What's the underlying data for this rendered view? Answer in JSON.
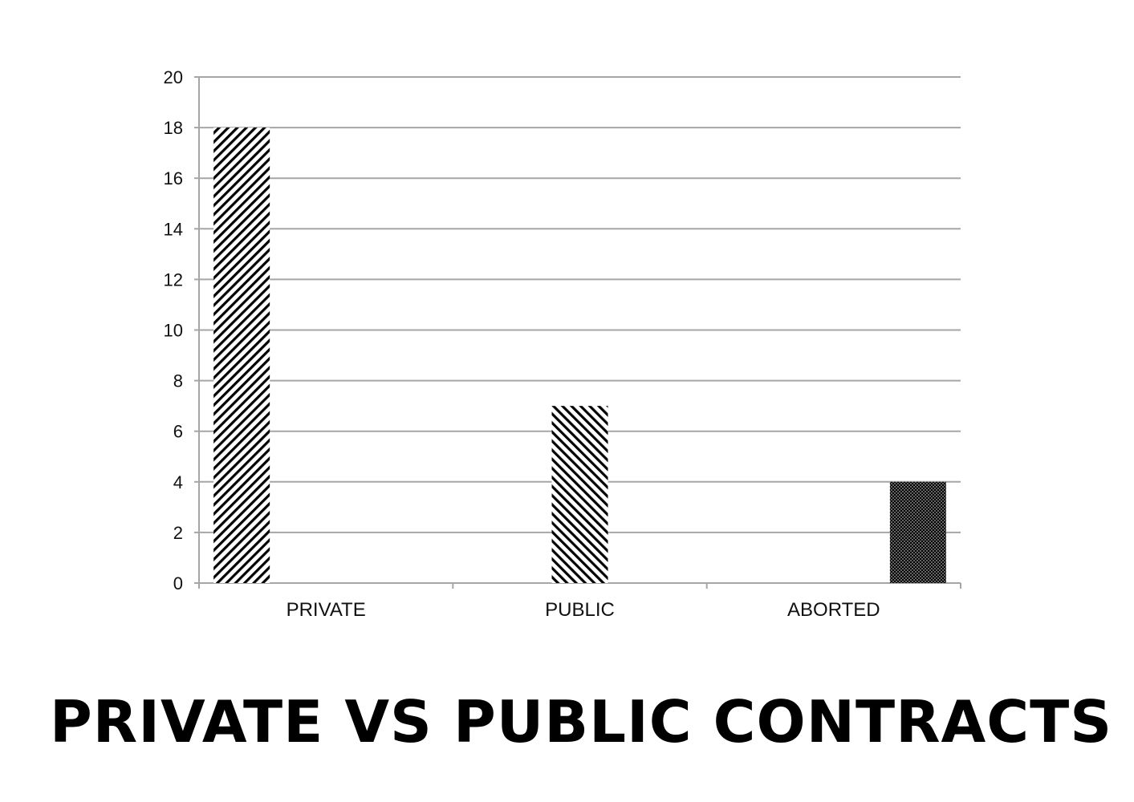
{
  "title": "PRIVATE VS PUBLIC CONTRACTS",
  "chart_data": {
    "type": "bar",
    "categories": [
      "PRIVATE",
      "PUBLIC",
      "ABORTED"
    ],
    "values": [
      18,
      7,
      4
    ],
    "title": "PRIVATE VS PUBLIC CONTRACTS",
    "xlabel": "",
    "ylabel": "",
    "ylim": [
      0,
      20
    ],
    "yticks": [
      0,
      2,
      4,
      6,
      8,
      10,
      12,
      14,
      16,
      18,
      20
    ],
    "grid": true,
    "legend": "none",
    "bar_fills": [
      "diagonal-hatch-right",
      "diagonal-hatch-left",
      "dense-dots"
    ],
    "bar_color": "#000000",
    "grid_color": "#a6a6a6"
  }
}
